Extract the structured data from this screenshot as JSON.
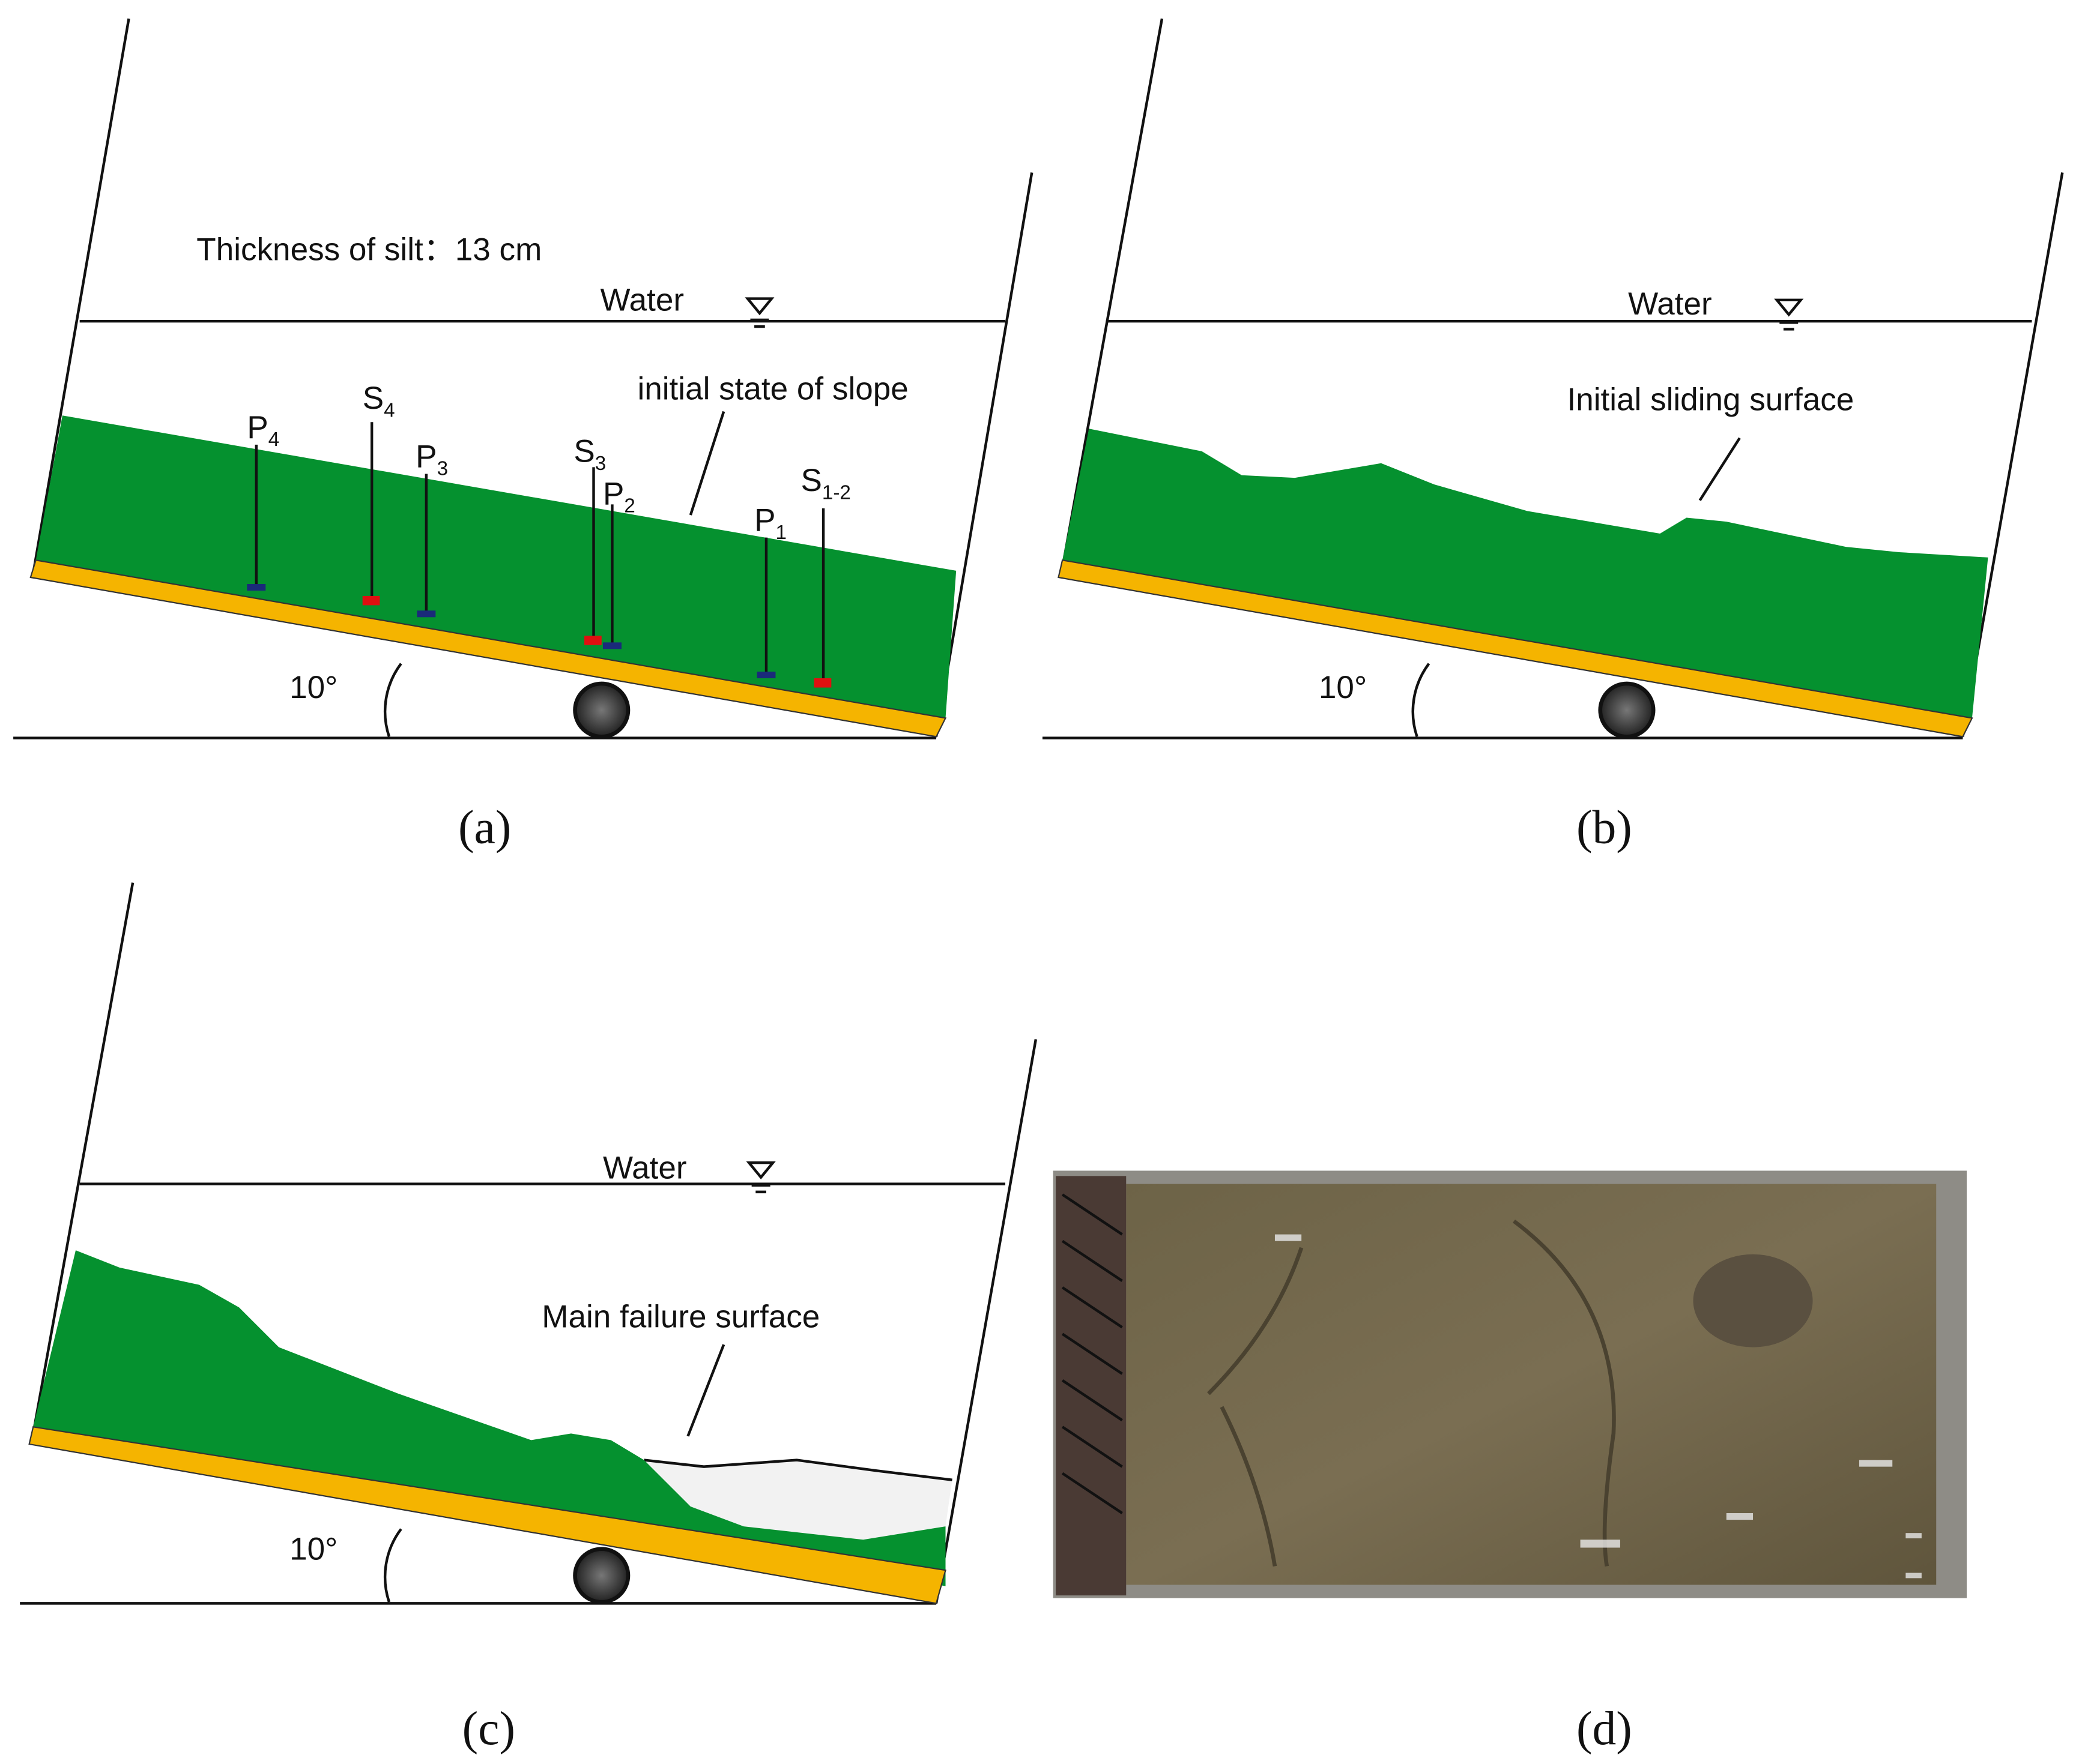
{
  "panels": [
    {
      "label": "(a)",
      "thickness": "Thickness of silt：13 cm",
      "water": "Water",
      "annotation": "initial state of slope",
      "angle": "10°",
      "sensors": [
        {
          "letter": "P",
          "index": "4"
        },
        {
          "letter": "S",
          "index": "4"
        },
        {
          "letter": "P",
          "index": "3"
        },
        {
          "letter": "S",
          "index": "3"
        },
        {
          "letter": "P",
          "index": "2"
        },
        {
          "letter": "P",
          "index": "1"
        },
        {
          "letter": "S",
          "index": "1-2"
        }
      ]
    },
    {
      "label": "(b)",
      "water": "Water",
      "annotation": "Initial sliding surface",
      "angle": "10°"
    },
    {
      "label": "(c)",
      "water": "Water",
      "annotation": "Main failure surface",
      "angle": "10°"
    },
    {
      "label": "(d)"
    }
  ]
}
